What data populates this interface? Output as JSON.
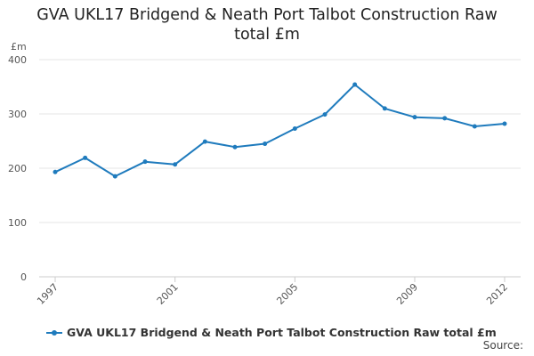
{
  "chart_data": {
    "type": "line",
    "title_lines": [
      "GVA UKL17 Bridgend & Neath Port Talbot Construction Raw",
      "total £m"
    ],
    "ylabel": "£m",
    "xlabel": "",
    "x": [
      1997,
      1998,
      1999,
      2000,
      2001,
      2002,
      2003,
      2004,
      2005,
      2006,
      2007,
      2008,
      2009,
      2010,
      2011,
      2012
    ],
    "x_ticks": [
      1997,
      2001,
      2005,
      2009,
      2012
    ],
    "y_ticks": [
      0,
      100,
      200,
      300,
      400
    ],
    "ylim": [
      0,
      400
    ],
    "grid": true,
    "series": [
      {
        "name": "GVA UKL17 Bridgend & Neath Port Talbot Construction Raw total £m",
        "values": [
          193,
          219,
          185,
          212,
          207,
          249,
          239,
          245,
          273,
          299,
          354,
          310,
          294,
          292,
          277,
          282
        ],
        "color": "#1f7bbd"
      }
    ],
    "legend_position": "bottom-left"
  },
  "source_label": "Source:",
  "colors": {
    "series": "#1f7bbd",
    "grid": "#e6e6e6",
    "axis_text": "#555555"
  }
}
